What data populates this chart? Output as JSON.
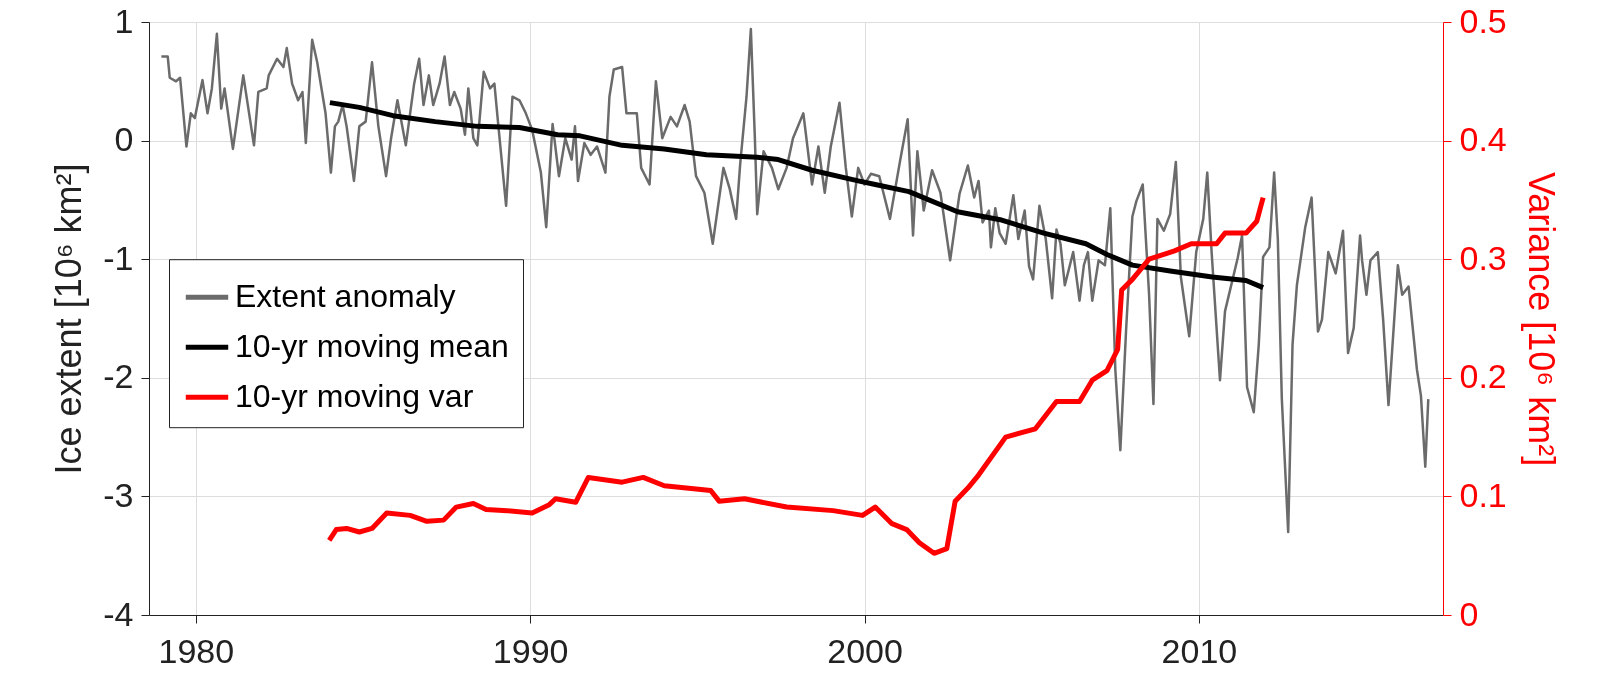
{
  "chart_data": {
    "type": "line",
    "xlabel": null,
    "ylabel": "Ice extent [10⁶ km²]",
    "y2label": "Variance [10⁶ km²]",
    "xlim": [
      1978.6,
      2017.3
    ],
    "xticks": [
      1980,
      1990,
      2000,
      2010
    ],
    "ylim": [
      -4,
      1
    ],
    "yticks": [
      -4,
      -3,
      -2,
      -1,
      0,
      1
    ],
    "y2lim": [
      0,
      0.5
    ],
    "y2ticks": [
      0,
      0.1,
      0.2,
      0.3,
      0.4,
      0.5
    ],
    "grid": true,
    "legend": "left",
    "line_style": "solid",
    "series": [
      {
        "name": "Extent anomaly",
        "color": "#6b6b6b",
        "x": [
          1978.97,
          1979.16,
          1979.22,
          1979.41,
          1979.53,
          1979.72,
          1979.85,
          1979.97,
          1980.2,
          1980.35,
          1980.48,
          1980.63,
          1980.76,
          1980.86,
          1981.11,
          1981.42,
          1981.74,
          1981.87,
          1982.12,
          1982.18,
          1982.43,
          1982.62,
          1982.72,
          1982.88,
          1983.06,
          1983.19,
          1983.29,
          1983.48,
          1983.63,
          1983.88,
          1984.04,
          1984.16,
          1984.26,
          1984.39,
          1984.51,
          1984.73,
          1984.89,
          1985.08,
          1985.27,
          1985.46,
          1985.69,
          1985.84,
          1986.03,
          1986.28,
          1986.53,
          1986.68,
          1986.81,
          1986.97,
          1987.1,
          1987.29,
          1987.44,
          1987.6,
          1987.73,
          1987.92,
          1988.05,
          1988.15,
          1988.3,
          1988.42,
          1988.61,
          1988.8,
          1988.93,
          1989.05,
          1989.28,
          1989.47,
          1989.68,
          1989.87,
          1990.06,
          1990.32,
          1990.48,
          1990.67,
          1990.86,
          1991.05,
          1991.24,
          1991.34,
          1991.43,
          1991.62,
          1991.81,
          1992.0,
          1992.25,
          1992.37,
          1992.5,
          1992.75,
          1992.88,
          1993.19,
          1993.32,
          1993.57,
          1993.76,
          1993.95,
          1994.2,
          1994.39,
          1994.62,
          1994.77,
          1994.96,
          1995.21,
          1995.46,
          1995.78,
          1995.97,
          1996.16,
          1996.28,
          1996.47,
          1996.6,
          1996.72,
          1996.79,
          1996.98,
          1997.23,
          1997.42,
          1997.67,
          1997.86,
          1998.17,
          1998.43,
          1998.62,
          1998.81,
          1998.99,
          1999.25,
          1999.44,
          1999.62,
          1999.81,
          2000.0,
          2000.19,
          2000.44,
          2000.76,
          2001.07,
          2001.29,
          2001.45,
          2001.58,
          2001.77,
          2002.02,
          2002.27,
          2002.56,
          2002.84,
          2003.09,
          2003.28,
          2003.41,
          2003.53,
          2003.72,
          2003.78,
          2003.91,
          2004.04,
          2004.22,
          2004.45,
          2004.6,
          2004.79,
          2004.92,
          2005.04,
          2005.23,
          2005.42,
          2005.61,
          2005.74,
          2005.86,
          2005.99,
          2006.24,
          2006.43,
          2006.56,
          2006.68,
          2006.81,
          2007.0,
          2007.19,
          2007.35,
          2007.5,
          2007.65,
          2007.82,
          2008.01,
          2008.13,
          2008.32,
          2008.51,
          2008.64,
          2008.76,
          2008.95,
          2009.14,
          2009.31,
          2009.46,
          2009.71,
          2009.92,
          2010.13,
          2010.25,
          2010.38,
          2010.63,
          2010.78,
          2011.16,
          2011.29,
          2011.44,
          2011.64,
          2011.79,
          2011.92,
          2012.11,
          2012.25,
          2012.36,
          2012.48,
          2012.67,
          2012.8,
          2012.93,
          2013.18,
          2013.37,
          2013.56,
          2013.68,
          2013.87,
          2014.09,
          2014.31,
          2014.46,
          2014.63,
          2014.82,
          2014.88,
          2015.01,
          2015.13,
          2015.35,
          2015.51,
          2015.67,
          2015.95,
          2016.08,
          2016.27,
          2016.52,
          2016.64,
          2016.77,
          2016.86
        ],
        "values": [
          0.71,
          0.71,
          0.53,
          0.5,
          0.53,
          -0.05,
          0.23,
          0.19,
          0.51,
          0.23,
          0.44,
          0.9,
          0.27,
          0.44,
          -0.07,
          0.55,
          -0.04,
          0.41,
          0.44,
          0.55,
          0.69,
          0.62,
          0.78,
          0.48,
          0.34,
          0.41,
          -0.02,
          0.85,
          0.66,
          0.23,
          -0.27,
          0.12,
          0.16,
          0.3,
          0.12,
          -0.34,
          0.12,
          0.16,
          0.66,
          0.12,
          -0.3,
          0.02,
          0.34,
          -0.04,
          0.48,
          0.69,
          0.3,
          0.55,
          0.3,
          0.48,
          0.71,
          0.3,
          0.41,
          0.27,
          0.05,
          0.44,
          0.02,
          -0.04,
          0.58,
          0.44,
          0.48,
          0.12,
          -0.55,
          0.37,
          0.34,
          0.23,
          0.09,
          -0.27,
          -0.73,
          0.14,
          -0.3,
          0.02,
          -0.16,
          0.12,
          -0.34,
          -0.02,
          -0.12,
          -0.05,
          -0.27,
          0.37,
          0.6,
          0.62,
          0.23,
          0.23,
          -0.23,
          -0.37,
          0.5,
          0.02,
          0.2,
          0.12,
          0.3,
          0.16,
          -0.3,
          -0.44,
          -0.87,
          -0.23,
          -0.41,
          -0.66,
          -0.2,
          0.37,
          0.94,
          0.02,
          -0.62,
          -0.09,
          -0.23,
          -0.41,
          -0.23,
          0.02,
          0.23,
          -0.37,
          -0.05,
          -0.44,
          -0.05,
          0.32,
          -0.23,
          -0.64,
          -0.23,
          -0.37,
          -0.28,
          -0.3,
          -0.66,
          -0.16,
          0.18,
          -0.8,
          -0.09,
          -0.59,
          -0.25,
          -0.44,
          -1.01,
          -0.45,
          -0.21,
          -0.48,
          -0.34,
          -0.69,
          -0.59,
          -0.9,
          -0.57,
          -0.78,
          -0.87,
          -0.46,
          -0.83,
          -0.59,
          -1.06,
          -1.17,
          -0.55,
          -0.83,
          -1.33,
          -0.75,
          -0.87,
          -1.22,
          -0.94,
          -1.35,
          -1.05,
          -0.94,
          -1.35,
          -1.01,
          -1.05,
          -0.57,
          -1.93,
          -2.61,
          -1.61,
          -0.64,
          -0.51,
          -0.37,
          -1.3,
          -2.22,
          -0.66,
          -0.76,
          -0.62,
          -0.18,
          -1.15,
          -1.65,
          -0.94,
          -0.66,
          -0.27,
          -0.94,
          -2.02,
          -1.44,
          -0.99,
          -0.8,
          -2.08,
          -2.29,
          -1.72,
          -0.98,
          -0.9,
          -0.27,
          -0.83,
          -2.18,
          -3.3,
          -1.72,
          -1.22,
          -0.73,
          -0.48,
          -1.61,
          -1.51,
          -0.94,
          -1.12,
          -0.76,
          -1.79,
          -1.58,
          -0.8,
          -1.01,
          -1.3,
          -1.01,
          -0.94,
          -1.51,
          -2.23,
          -1.05,
          -1.3,
          -1.23,
          -1.93,
          -2.15,
          -2.75,
          -2.18
        ]
      },
      {
        "name": "10-yr moving mean",
        "color": "#000000",
        "x": [
          1984.01,
          1984.89,
          1985.9,
          1987.16,
          1988.42,
          1989.68,
          1990.82,
          1991.49,
          1992.75,
          1994.01,
          1995.27,
          1996.79,
          1997.42,
          1998.43,
          1999.81,
          2000.32,
          2001.33,
          2002.78,
          2004.1,
          2005.36,
          2006.62,
          2007.25,
          2008.01,
          2009.14,
          2010.4,
          2011.41,
          2011.92
        ],
        "values": [
          0.32,
          0.28,
          0.21,
          0.16,
          0.12,
          0.11,
          0.05,
          0.04,
          -0.04,
          -0.07,
          -0.12,
          -0.14,
          -0.16,
          -0.25,
          -0.34,
          -0.37,
          -0.43,
          -0.6,
          -0.67,
          -0.78,
          -0.87,
          -0.96,
          -1.05,
          -1.1,
          -1.15,
          -1.18,
          -1.24
        ]
      },
      {
        "name": "10-yr moving var",
        "color": "#ff0000",
        "axis": "y2",
        "x": [
          1983.99,
          1984.2,
          1984.51,
          1984.89,
          1985.27,
          1985.71,
          1986.41,
          1986.91,
          1987.41,
          1987.79,
          1988.3,
          1988.68,
          1989.31,
          1990.06,
          1990.57,
          1990.76,
          1991.36,
          1991.74,
          1992.75,
          1993.38,
          1994.01,
          1995.4,
          1995.65,
          1996.41,
          1997.67,
          1999.06,
          1999.94,
          2000.32,
          2000.82,
          2001.26,
          2001.64,
          2002.08,
          2002.46,
          2002.71,
          2003.09,
          2003.41,
          2004.22,
          2005.11,
          2005.74,
          2006.43,
          2006.81,
          2007.25,
          2007.57,
          2007.69,
          2008.01,
          2008.51,
          2009.27,
          2009.77,
          2010.53,
          2010.78,
          2011.41,
          2011.73,
          2011.92
        ],
        "values": [
          0.063,
          0.072,
          0.073,
          0.07,
          0.073,
          0.086,
          0.084,
          0.079,
          0.08,
          0.091,
          0.094,
          0.089,
          0.088,
          0.086,
          0.093,
          0.098,
          0.095,
          0.116,
          0.112,
          0.116,
          0.109,
          0.105,
          0.096,
          0.098,
          0.091,
          0.088,
          0.084,
          0.091,
          0.077,
          0.072,
          0.061,
          0.052,
          0.056,
          0.096,
          0.107,
          0.118,
          0.15,
          0.157,
          0.18,
          0.18,
          0.198,
          0.206,
          0.224,
          0.274,
          0.283,
          0.3,
          0.307,
          0.313,
          0.313,
          0.322,
          0.322,
          0.332,
          0.352
        ]
      }
    ]
  }
}
